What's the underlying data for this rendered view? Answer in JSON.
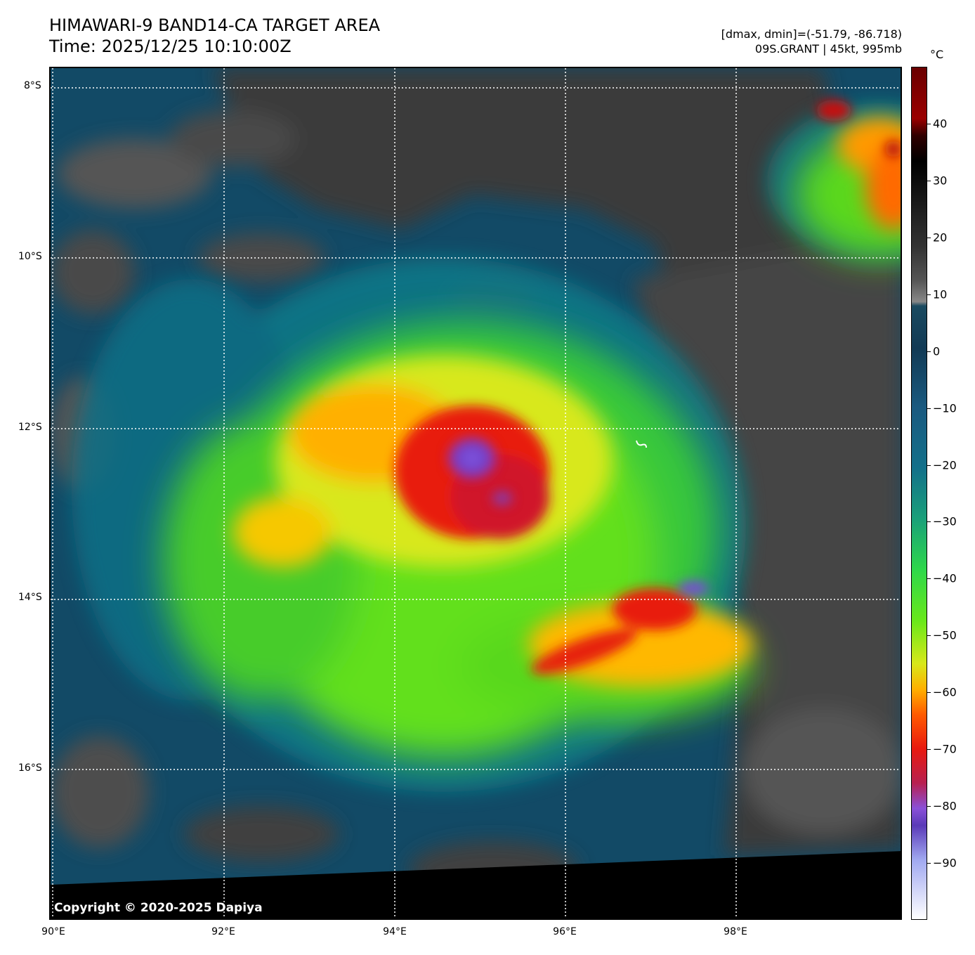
{
  "header": {
    "title": "HIMAWARI-9 BAND14-CA TARGET AREA",
    "time": "Time: 2025/12/25 10:10:00Z",
    "dminmax": "[dmax, dmin]=(-51.79, -86.718)",
    "storm": "09S.GRANT | 45kt, 995mb"
  },
  "map": {
    "copyright": "Copyright © 2020-2025 Dapiya",
    "lat_labels": [
      "8°S",
      "10°S",
      "12°S",
      "14°S",
      "16°S"
    ],
    "lon_labels": [
      "90°E",
      "92°E",
      "94°E",
      "96°E",
      "98°E"
    ],
    "gridline_style": "dotted white"
  },
  "colorbar": {
    "unit": "°C",
    "ticks": [
      "40",
      "30",
      "20",
      "10",
      "0",
      "−10",
      "−20",
      "−30",
      "−40",
      "−50",
      "−60",
      "−70",
      "−80",
      "−90"
    ],
    "range": [
      -100,
      50
    ]
  },
  "colors": {
    "warm_clear": "#3a3a3a",
    "cold_cyan": "#0e6b8a",
    "convection_green": "#66e81a",
    "convection_yellow": "#ffe100",
    "convection_red": "#e81a0f",
    "core_purple": "#7a48d8"
  }
}
